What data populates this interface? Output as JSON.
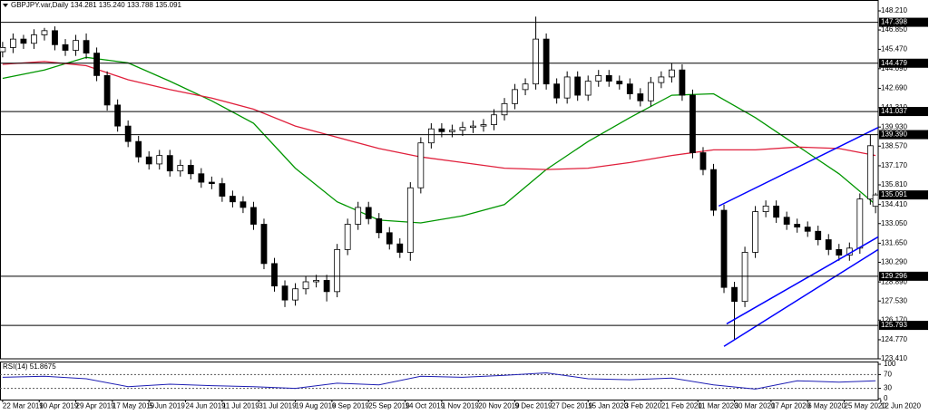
{
  "chart_data": [
    {
      "type": "candlestick",
      "title": "GBPJPY.var,Daily  134.281 135.240 133.788 135.091",
      "up_color": "#ffffff",
      "down_color": "#000000",
      "xlim": [
        -1,
        335
      ],
      "ylim": [
        123.41,
        148.985
      ],
      "yticks": [
        {
          "value": 148.21,
          "label": "148.210"
        },
        {
          "value": 146.85,
          "label": "146.850"
        },
        {
          "value": 145.47,
          "label": "145.470"
        },
        {
          "value": 144.09,
          "label": "144.090"
        },
        {
          "value": 142.69,
          "label": "142.690"
        },
        {
          "value": 141.31,
          "label": "141.310"
        },
        {
          "value": 139.93,
          "label": "139.930"
        },
        {
          "value": 138.57,
          "label": "138.570"
        },
        {
          "value": 137.17,
          "label": "137.170"
        },
        {
          "value": 135.81,
          "label": "135.810"
        },
        {
          "value": 134.41,
          "label": "134.410"
        },
        {
          "value": 133.05,
          "label": "133.050"
        },
        {
          "value": 131.65,
          "label": "131.650"
        },
        {
          "value": 130.29,
          "label": "130.290"
        },
        {
          "value": 128.89,
          "label": "128.890"
        },
        {
          "value": 127.53,
          "label": "127.530"
        },
        {
          "value": 126.17,
          "label": "126.170"
        },
        {
          "value": 124.77,
          "label": "124.770"
        },
        {
          "value": 123.41,
          "label": "123.410"
        }
      ],
      "levels": [
        147.398,
        144.479,
        141.037,
        {
          "value": 139.39,
          "label": "139.390"
        },
        129.296,
        125.793
      ],
      "x": [
        0,
        4,
        8,
        12,
        16,
        20,
        24,
        28,
        32,
        36,
        40,
        44,
        48,
        52,
        56,
        60,
        64,
        68,
        72,
        76,
        80,
        84,
        88,
        92,
        96,
        100,
        104,
        108,
        112,
        116,
        120,
        124,
        128,
        132,
        136,
        140,
        144,
        148,
        152,
        156,
        160,
        164,
        168,
        172,
        176,
        180,
        184,
        188,
        192,
        196,
        200,
        204,
        208,
        212,
        216,
        220,
        224,
        228,
        232,
        236,
        240,
        244,
        248,
        252,
        256,
        260,
        264,
        268,
        272,
        276,
        280,
        284,
        288,
        292,
        296,
        300,
        304,
        308,
        312,
        316,
        320,
        324,
        328,
        332,
        334
      ],
      "open": [
        145.3,
        145.6,
        146.2,
        145.9,
        146.5,
        146.8,
        145.8,
        145.4,
        146.1,
        145.2,
        143.6,
        141.5,
        140.0,
        138.9,
        137.8,
        137.3,
        137.9,
        136.8,
        137.2,
        136.6,
        136.0,
        135.9,
        135.0,
        134.6,
        134.2,
        133.0,
        130.2,
        128.6,
        127.6,
        128.4,
        128.9,
        129.0,
        128.2,
        131.2,
        133.0,
        134.2,
        133.4,
        132.4,
        131.6,
        131.0,
        135.6,
        138.8,
        139.8,
        139.6,
        139.7,
        139.9,
        140.0,
        140.1,
        140.8,
        141.6,
        142.6,
        143.0,
        146.2,
        143.0,
        142.0,
        143.5,
        142.2,
        143.2,
        143.6,
        143.2,
        143.0,
        142.3,
        141.8,
        143.1,
        143.5,
        144.0,
        142.2,
        138.1,
        136.9,
        134.0,
        128.5,
        127.5,
        131.0,
        133.9,
        134.3,
        133.5,
        133.0,
        132.8,
        132.5,
        131.9,
        131.2,
        130.8,
        131.3,
        134.8,
        134.281
      ],
      "high": [
        146.0,
        146.6,
        146.5,
        146.9,
        147.0,
        147.1,
        146.2,
        146.5,
        146.6,
        145.6,
        143.9,
        141.9,
        140.4,
        139.3,
        138.2,
        138.3,
        138.3,
        137.6,
        137.6,
        137.0,
        136.4,
        136.3,
        135.4,
        135.0,
        134.6,
        133.4,
        130.6,
        129.0,
        128.8,
        129.3,
        129.4,
        129.4,
        131.6,
        133.4,
        134.6,
        134.6,
        133.8,
        132.8,
        132.0,
        136.0,
        139.2,
        140.2,
        140.2,
        140.1,
        140.3,
        140.4,
        140.5,
        141.2,
        142.0,
        143.0,
        143.4,
        147.8,
        146.6,
        143.4,
        143.9,
        143.9,
        143.6,
        144.0,
        144.0,
        143.6,
        143.4,
        142.7,
        143.5,
        143.9,
        144.5,
        144.4,
        142.6,
        138.5,
        137.3,
        134.4,
        128.9,
        131.4,
        134.3,
        134.7,
        134.7,
        133.9,
        133.4,
        133.2,
        132.9,
        132.3,
        131.6,
        131.7,
        135.2,
        139.4,
        135.24
      ],
      "low": [
        144.9,
        145.2,
        145.5,
        145.5,
        146.1,
        145.4,
        145.0,
        145.0,
        144.8,
        143.2,
        141.1,
        139.6,
        138.5,
        137.4,
        136.9,
        136.9,
        136.4,
        136.4,
        136.2,
        135.6,
        135.5,
        134.6,
        134.2,
        133.8,
        132.6,
        129.8,
        128.2,
        127.1,
        127.2,
        128.0,
        128.5,
        127.5,
        127.8,
        130.8,
        132.6,
        133.0,
        132.0,
        131.2,
        130.6,
        130.4,
        135.2,
        138.4,
        139.2,
        139.2,
        139.3,
        139.5,
        139.6,
        139.7,
        140.4,
        141.2,
        142.2,
        142.6,
        142.6,
        141.6,
        141.6,
        141.8,
        141.8,
        142.8,
        142.8,
        142.6,
        141.9,
        141.4,
        141.4,
        142.7,
        143.1,
        141.8,
        137.7,
        136.5,
        133.6,
        128.1,
        124.8,
        127.1,
        130.6,
        133.5,
        133.1,
        132.6,
        132.4,
        132.1,
        131.5,
        130.8,
        130.4,
        130.4,
        130.9,
        134.4,
        133.788
      ],
      "close": [
        145.6,
        146.2,
        145.9,
        146.5,
        146.8,
        145.8,
        145.4,
        146.1,
        145.2,
        143.6,
        141.5,
        140.0,
        138.9,
        137.8,
        137.3,
        137.9,
        136.8,
        137.2,
        136.6,
        136.0,
        135.9,
        135.0,
        134.6,
        134.2,
        133.0,
        130.2,
        128.6,
        127.6,
        128.4,
        128.9,
        129.0,
        128.2,
        131.2,
        133.0,
        134.2,
        133.4,
        132.4,
        131.6,
        131.0,
        135.6,
        138.8,
        139.8,
        139.6,
        139.7,
        139.9,
        140.0,
        140.1,
        140.8,
        141.6,
        142.6,
        143.0,
        146.2,
        143.0,
        142.0,
        143.5,
        142.2,
        143.2,
        143.6,
        143.2,
        143.0,
        142.3,
        141.8,
        143.1,
        143.5,
        144.0,
        142.2,
        138.1,
        136.9,
        134.0,
        128.5,
        127.5,
        131.0,
        133.9,
        134.3,
        133.5,
        133.0,
        132.8,
        132.5,
        131.9,
        131.2,
        130.8,
        131.3,
        134.8,
        138.6,
        135.091
      ],
      "series": [
        {
          "color": "#009600",
          "x": [
            0,
            16,
            32,
            48,
            64,
            80,
            96,
            112,
            128,
            144,
            160,
            176,
            192,
            208,
            224,
            240,
            256,
            272,
            288,
            304,
            320,
            334
          ],
          "values": [
            143.4,
            144.0,
            144.9,
            144.5,
            143.2,
            141.8,
            140.2,
            137.0,
            134.6,
            133.3,
            133.1,
            133.6,
            134.4,
            136.9,
            138.9,
            140.6,
            142.2,
            142.3,
            140.6,
            138.6,
            136.6,
            134.4
          ]
        },
        {
          "color": "#e0203c",
          "x": [
            0,
            16,
            32,
            48,
            64,
            80,
            96,
            112,
            128,
            144,
            160,
            176,
            192,
            208,
            224,
            240,
            256,
            272,
            288,
            304,
            320,
            334
          ],
          "values": [
            144.4,
            144.6,
            144.3,
            143.3,
            142.6,
            142.0,
            141.2,
            140.0,
            139.2,
            138.4,
            137.8,
            137.4,
            137.0,
            136.9,
            137.0,
            137.4,
            137.9,
            138.3,
            138.3,
            138.5,
            138.4,
            137.9
          ]
        }
      ],
      "trendlines": [
        {
          "color": "#0000ff",
          "x": [
            274,
            335
          ],
          "y": [
            134.3,
            139.9
          ]
        },
        {
          "color": "#0000ff",
          "x": [
            277,
            335
          ],
          "y": [
            125.9,
            132.1
          ]
        },
        {
          "color": "#0000ff",
          "x": [
            276,
            335
          ],
          "y": [
            124.3,
            131.2
          ]
        }
      ]
    },
    {
      "type": "line",
      "title": "RSI(14) 51.8675",
      "color": "#1e1eb4",
      "xlim": [
        -1,
        335
      ],
      "ylim": [
        0,
        100
      ],
      "yticks": [
        100,
        70,
        30,
        0
      ],
      "levels": [
        70,
        30
      ],
      "xticks": [
        {
          "value": 0,
          "label": "22 Mar 2019"
        },
        {
          "value": 14,
          "label": "10 Apr 2019"
        },
        {
          "value": 28,
          "label": "29 Apr 2019"
        },
        {
          "value": 42,
          "label": "17 May 2019"
        },
        {
          "value": 56,
          "label": "5 Jun 2019"
        },
        {
          "value": 70,
          "label": "24 Jun 2019"
        },
        {
          "value": 84,
          "label": "11 Jul 2019"
        },
        {
          "value": 98,
          "label": "31 Jul 2019"
        },
        {
          "value": 112,
          "label": "19 Aug 2019"
        },
        {
          "value": 126,
          "label": "6 Sep 2019"
        },
        {
          "value": 140,
          "label": "25 Sep 2019"
        },
        {
          "value": 154,
          "label": "14 Oct 2019"
        },
        {
          "value": 168,
          "label": "1 Nov 2019"
        },
        {
          "value": 182,
          "label": "20 Nov 2019"
        },
        {
          "value": 196,
          "label": "9 Dec 2019"
        },
        {
          "value": 210,
          "label": "27 Dec 2019"
        },
        {
          "value": 224,
          "label": "15 Jan 2020"
        },
        {
          "value": 238,
          "label": "3 Feb 2020"
        },
        {
          "value": 252,
          "label": "21 Feb 2020"
        },
        {
          "value": 266,
          "label": "11 Mar 2020"
        },
        {
          "value": 280,
          "label": "30 Mar 2020"
        },
        {
          "value": 294,
          "label": "17 Apr 2020"
        },
        {
          "value": 308,
          "label": "6 May 2020"
        },
        {
          "value": 322,
          "label": "25 May 2020"
        },
        {
          "value": 336,
          "label": "12 Jun 2020"
        }
      ],
      "x": [
        0,
        16,
        32,
        48,
        64,
        80,
        96,
        112,
        128,
        144,
        160,
        176,
        192,
        208,
        224,
        240,
        256,
        272,
        288,
        304,
        320,
        334
      ],
      "values": [
        62,
        65,
        58,
        35,
        42,
        38,
        35,
        30,
        45,
        40,
        65,
        62,
        68,
        75,
        58,
        55,
        60,
        40,
        28,
        52,
        48,
        52
      ]
    }
  ]
}
